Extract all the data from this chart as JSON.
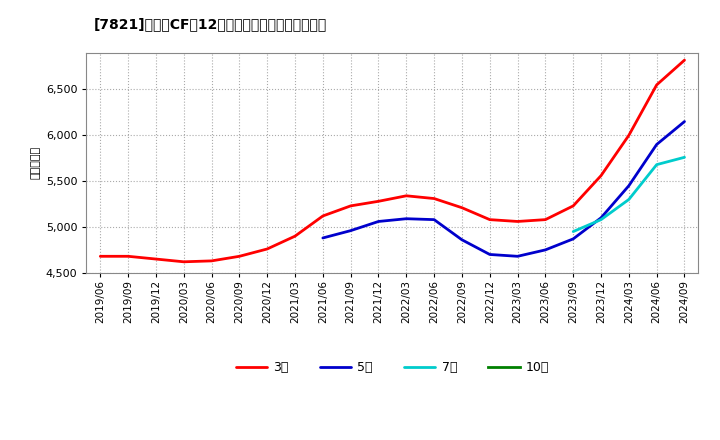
{
  "title": "[7821]　営業CFだ12か月移動合計の平均値の推移",
  "ylabel": "（百万円）",
  "background_color": "#ffffff",
  "plot_bg_color": "#ffffff",
  "grid_color": "#aaaaaa",
  "ylim": [
    4500,
    6900
  ],
  "yticks": [
    4500,
    5000,
    5500,
    6000,
    6500
  ],
  "series": {
    "3年": {
      "color": "#ff0000",
      "points": [
        [
          "2019/06",
          4680
        ],
        [
          "2019/09",
          4680
        ],
        [
          "2019/12",
          4650
        ],
        [
          "2020/03",
          4620
        ],
        [
          "2020/06",
          4630
        ],
        [
          "2020/09",
          4680
        ],
        [
          "2020/12",
          4760
        ],
        [
          "2021/03",
          4900
        ],
        [
          "2021/06",
          5120
        ],
        [
          "2021/09",
          5230
        ],
        [
          "2021/12",
          5280
        ],
        [
          "2022/03",
          5340
        ],
        [
          "2022/06",
          5310
        ],
        [
          "2022/09",
          5210
        ],
        [
          "2022/12",
          5080
        ],
        [
          "2023/03",
          5060
        ],
        [
          "2023/06",
          5080
        ],
        [
          "2023/09",
          5230
        ],
        [
          "2023/12",
          5560
        ],
        [
          "2024/03",
          6000
        ],
        [
          "2024/06",
          6550
        ],
        [
          "2024/09",
          6820
        ]
      ]
    },
    "5年": {
      "color": "#0000cc",
      "points": [
        [
          "2021/06",
          4880
        ],
        [
          "2021/09",
          4960
        ],
        [
          "2021/12",
          5060
        ],
        [
          "2022/03",
          5090
        ],
        [
          "2022/06",
          5080
        ],
        [
          "2022/09",
          4860
        ],
        [
          "2022/12",
          4700
        ],
        [
          "2023/03",
          4680
        ],
        [
          "2023/06",
          4750
        ],
        [
          "2023/09",
          4870
        ],
        [
          "2023/12",
          5100
        ],
        [
          "2024/03",
          5450
        ],
        [
          "2024/06",
          5900
        ],
        [
          "2024/09",
          6150
        ]
      ]
    },
    "7年": {
      "color": "#00cccc",
      "points": [
        [
          "2023/09",
          4950
        ],
        [
          "2023/12",
          5080
        ],
        [
          "2024/03",
          5300
        ],
        [
          "2024/06",
          5680
        ],
        [
          "2024/09",
          5760
        ]
      ]
    },
    "10年": {
      "color": "#008000",
      "points": []
    }
  },
  "legend_order": [
    "3年",
    "5年",
    "7年",
    "10年"
  ],
  "x_tick_labels": [
    "2019/06",
    "2019/09",
    "2019/12",
    "2020/03",
    "2020/06",
    "2020/09",
    "2020/12",
    "2021/03",
    "2021/06",
    "2021/09",
    "2021/12",
    "2022/03",
    "2022/06",
    "2022/09",
    "2022/12",
    "2023/03",
    "2023/06",
    "2023/09",
    "2023/12",
    "2024/03",
    "2024/06",
    "2024/09"
  ]
}
